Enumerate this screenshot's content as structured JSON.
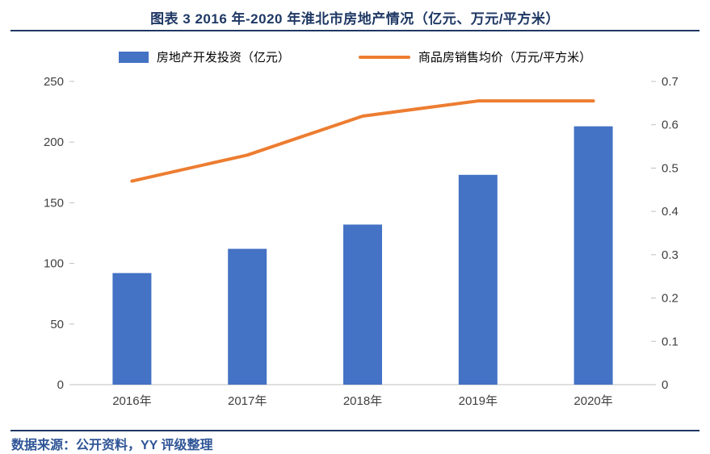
{
  "title": "图表 3 2016 年-2020 年淮北市房地产情况（亿元、万元/平方米）",
  "source": "数据来源：公开资料，YY 评级整理",
  "colors": {
    "bar": "#4472C4",
    "line": "#ED7D31",
    "title": "#1F3864",
    "rule": "#1F3864",
    "source": "#2F5597",
    "axis": "#BFBFBF",
    "text": "#404040"
  },
  "chart_data": {
    "type": "bar",
    "subtype": "combo-bar-line",
    "title": "图表 3 2016 年-2020 年淮北市房地产情况（亿元、万元/平方米）",
    "categories": [
      "2016年",
      "2017年",
      "2018年",
      "2019年",
      "2020年"
    ],
    "series": [
      {
        "name": "房地产开发投资（亿元）",
        "type": "bar",
        "axis": "left",
        "values": [
          92,
          112,
          132,
          173,
          213
        ]
      },
      {
        "name": "商品房销售均价（万元/平方米）",
        "type": "line",
        "axis": "right",
        "values": [
          0.47,
          0.53,
          0.62,
          0.655,
          0.655
        ]
      }
    ],
    "left_axis": {
      "min": 0,
      "max": 250,
      "step": 50,
      "ticks": [
        "0",
        "50",
        "100",
        "150",
        "200",
        "250"
      ]
    },
    "right_axis": {
      "min": 0,
      "max": 0.7,
      "step": 0.1,
      "ticks": [
        "0",
        "0.1",
        "0.2",
        "0.3",
        "0.4",
        "0.5",
        "0.6",
        "0.7"
      ]
    },
    "xlabel": "",
    "ylabel_left": "亿元",
    "ylabel_right": "万元/平方米",
    "legend_position": "top",
    "grid": false
  }
}
